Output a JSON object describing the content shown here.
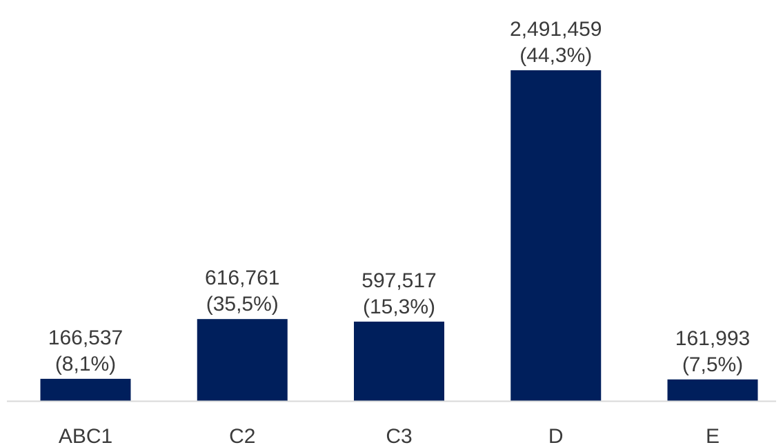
{
  "chart_data": {
    "type": "bar",
    "categories": [
      "ABC1",
      "C2",
      "C3",
      "D",
      "E"
    ],
    "values": [
      166537,
      616761,
      597517,
      2491459,
      161993
    ],
    "value_labels": [
      "166,537",
      "616,761",
      "597,517",
      "2,491,459",
      "161,993"
    ],
    "percent_labels": [
      "(8,1%)",
      "(35,5%)",
      "(15,3%)",
      "(44,3%)",
      "(7,5%)"
    ],
    "title": "",
    "xlabel": "",
    "ylabel": "",
    "ylim": [
      0,
      2491459
    ],
    "grid": false,
    "legend": "none",
    "colors": {
      "bar": "#001f5c",
      "axis": "#d9d9d9",
      "text": "#3a3a3a"
    }
  }
}
